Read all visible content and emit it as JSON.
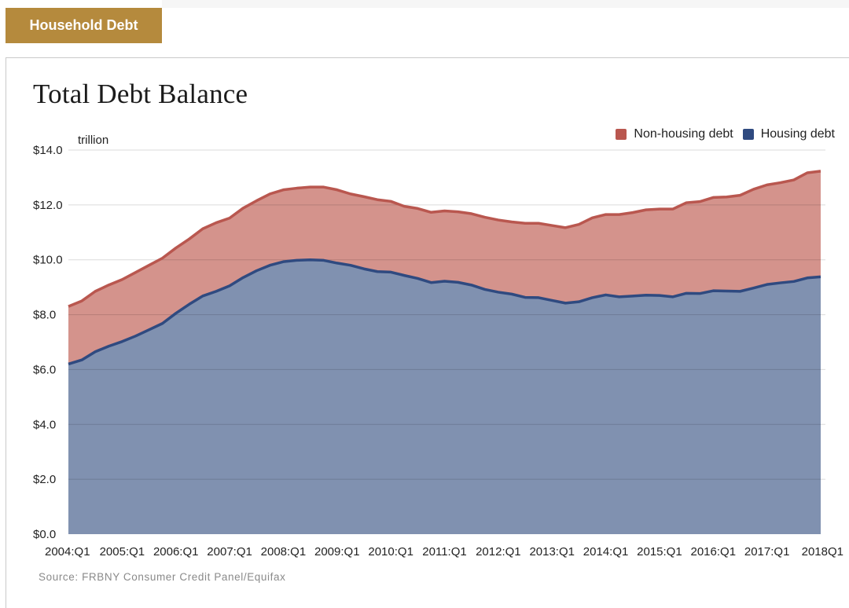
{
  "header": {
    "tab_label": "Household Debt"
  },
  "chart_data": {
    "type": "area",
    "title": "Total Debt Balance",
    "y_unit_label": "trillion",
    "ylim": [
      0,
      14
    ],
    "y_ticks": [
      0,
      2,
      4,
      6,
      8,
      10,
      12,
      14
    ],
    "y_tick_labels": [
      "$0.0",
      "$2.0",
      "$4.0",
      "$6.0",
      "$8.0",
      "$10.0",
      "$12.0",
      "$14.0"
    ],
    "x_tick_labels": [
      "2004:Q1",
      "2005:Q1",
      "2006:Q1",
      "2007:Q1",
      "2008:Q1",
      "2009:Q1",
      "2010:Q1",
      "2011:Q1",
      "2012:Q1",
      "2013:Q1",
      "2014:Q1",
      "2015:Q1",
      "2016:Q1",
      "2017:Q1",
      "2018Q1"
    ],
    "stacking": "stacked",
    "series": [
      {
        "name": "Housing debt",
        "color": "#2f4a80",
        "fill": "#8091b0",
        "values": [
          6.2,
          6.35,
          6.65,
          6.85,
          7.02,
          7.22,
          7.45,
          7.68,
          8.05,
          8.38,
          8.68,
          8.85,
          9.05,
          9.35,
          9.6,
          9.8,
          9.93,
          9.98,
          10.0,
          9.98,
          9.88,
          9.8,
          9.67,
          9.57,
          9.55,
          9.43,
          9.32,
          9.17,
          9.22,
          9.18,
          9.08,
          8.92,
          8.82,
          8.75,
          8.63,
          8.62,
          8.52,
          8.42,
          8.47,
          8.62,
          8.72,
          8.65,
          8.68,
          8.71,
          8.7,
          8.65,
          8.78,
          8.77,
          8.87,
          8.86,
          8.85,
          8.97,
          9.1,
          9.16,
          9.21,
          9.34,
          9.38
        ]
      },
      {
        "name": "Non-housing debt",
        "color": "#b9574f",
        "fill": "#d4938c",
        "values": [
          2.1,
          2.15,
          2.2,
          2.23,
          2.26,
          2.32,
          2.35,
          2.38,
          2.38,
          2.38,
          2.45,
          2.5,
          2.47,
          2.53,
          2.55,
          2.6,
          2.62,
          2.63,
          2.65,
          2.67,
          2.67,
          2.6,
          2.63,
          2.62,
          2.58,
          2.52,
          2.55,
          2.56,
          2.56,
          2.57,
          2.6,
          2.63,
          2.63,
          2.63,
          2.7,
          2.71,
          2.73,
          2.75,
          2.82,
          2.91,
          2.93,
          3.0,
          3.04,
          3.11,
          3.15,
          3.2,
          3.3,
          3.35,
          3.4,
          3.43,
          3.5,
          3.6,
          3.63,
          3.65,
          3.7,
          3.83,
          3.85
        ]
      }
    ],
    "legend_position": "top-right",
    "source": "Source: FRBNY Consumer Credit Panel/Equifax",
    "grid": true
  }
}
